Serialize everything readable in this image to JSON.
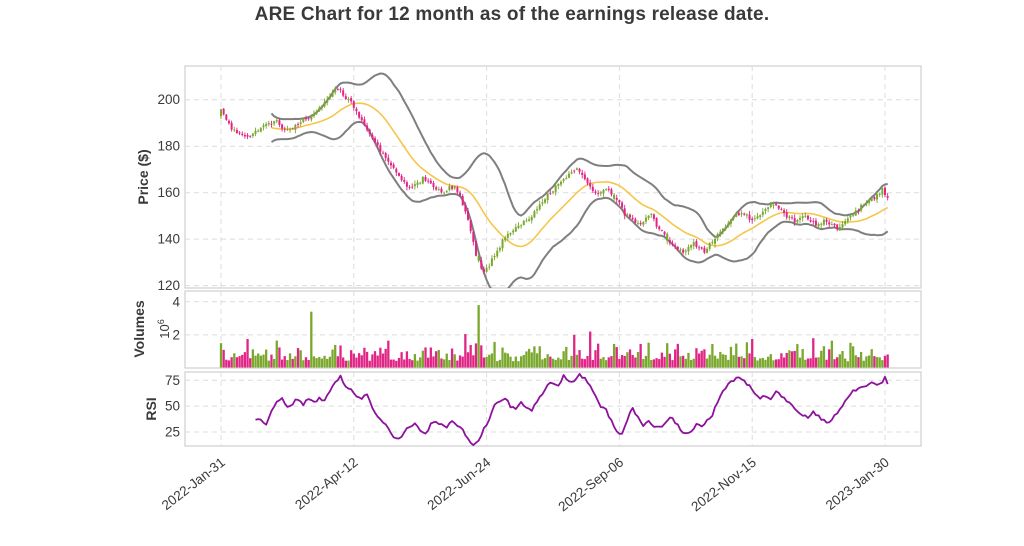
{
  "title": "ARE Chart for 12 month as of the earnings release date.",
  "panels": {
    "price": {
      "ylabel": "Price ($)",
      "yticks": [
        200,
        180,
        160,
        140,
        120
      ]
    },
    "volume": {
      "ylabel": "Volumes",
      "scale_base": "10",
      "scale_exp": "6",
      "yticks": [
        4,
        2
      ]
    },
    "rsi": {
      "ylabel": "RSI",
      "yticks": [
        75,
        50,
        25
      ]
    }
  },
  "xaxis": {
    "tick_labels": [
      "2022-Jan-31",
      "2022-Apr-12",
      "2022-Jun-24",
      "2022-Sep-06",
      "2022-Nov-15",
      "2023-Jan-30"
    ],
    "tick_day_indices": [
      0,
      50,
      100,
      150,
      200,
      250
    ]
  },
  "colors": {
    "candle_up": "#7aa82d",
    "candle_down": "#e02585",
    "bollinger_band": "#7f7f7f",
    "sma_line": "#f6c64a",
    "rsi_line": "#8d119c",
    "grid": "#dcdcdc",
    "panel_border": "#cfcfcf",
    "text": "#3a3a3a",
    "background": "#ffffff"
  },
  "chart_data": {
    "type": "candlestick",
    "title": "ARE Chart for 12 month as of the earnings release date.",
    "num_trading_days": 252,
    "price_ylim": [
      119,
      214.5
    ],
    "volume_ylim": [
      0,
      4.65
    ],
    "rsi_ylim": [
      11.5,
      83
    ],
    "grid": "dashed",
    "overlays": {
      "bollinger_window": 20,
      "bollinger_sigma": 2,
      "sma_window": 20,
      "rsi_window": 14
    },
    "close_anchors": [
      [
        0,
        196
      ],
      [
        1,
        193
      ],
      [
        3,
        189
      ],
      [
        5,
        187
      ],
      [
        7,
        185.5
      ],
      [
        9,
        184.5
      ],
      [
        11,
        185
      ],
      [
        13,
        186.5
      ],
      [
        15,
        188
      ],
      [
        17,
        190
      ],
      [
        19,
        189
      ],
      [
        21,
        191
      ],
      [
        23,
        188
      ],
      [
        25,
        186.5
      ],
      [
        27,
        187.5
      ],
      [
        29,
        189.5
      ],
      [
        31,
        191
      ],
      [
        33,
        192
      ],
      [
        35,
        193.5
      ],
      [
        37,
        196
      ],
      [
        39,
        199
      ],
      [
        41,
        202
      ],
      [
        43,
        204
      ],
      [
        45,
        203.5
      ],
      [
        47,
        201
      ],
      [
        49,
        198.5
      ],
      [
        52,
        193
      ],
      [
        54,
        189
      ],
      [
        56,
        186
      ],
      [
        58,
        182
      ],
      [
        60,
        178
      ],
      [
        62,
        175
      ],
      [
        64,
        172
      ],
      [
        66,
        168
      ],
      [
        68,
        166
      ],
      [
        70,
        163
      ],
      [
        72,
        162
      ],
      [
        74,
        164
      ],
      [
        76,
        166
      ],
      [
        78,
        164
      ],
      [
        80,
        163
      ],
      [
        82,
        161
      ],
      [
        84,
        160
      ],
      [
        86,
        162
      ],
      [
        88,
        163
      ],
      [
        90,
        158
      ],
      [
        92,
        152
      ],
      [
        94,
        144
      ],
      [
        96,
        133
      ],
      [
        98,
        127
      ],
      [
        99,
        126
      ],
      [
        100,
        127.5
      ],
      [
        101,
        129
      ],
      [
        103,
        133
      ],
      [
        105,
        137
      ],
      [
        107,
        141
      ],
      [
        109,
        143.5
      ],
      [
        111,
        145
      ],
      [
        113,
        146.5
      ],
      [
        115,
        148
      ],
      [
        117,
        150
      ],
      [
        119,
        153
      ],
      [
        121,
        156
      ],
      [
        123,
        159
      ],
      [
        125,
        161
      ],
      [
        127,
        164
      ],
      [
        129,
        166
      ],
      [
        131,
        168
      ],
      [
        133,
        169.5
      ],
      [
        134,
        170
      ],
      [
        136,
        167
      ],
      [
        138,
        164
      ],
      [
        140,
        161
      ],
      [
        142,
        159
      ],
      [
        144,
        161
      ],
      [
        146,
        162
      ],
      [
        148,
        158
      ],
      [
        150,
        155
      ],
      [
        152,
        151
      ],
      [
        154,
        149
      ],
      [
        156,
        147
      ],
      [
        158,
        146
      ],
      [
        160,
        149
      ],
      [
        162,
        150
      ],
      [
        164,
        146
      ],
      [
        166,
        143
      ],
      [
        168,
        140
      ],
      [
        170,
        138
      ],
      [
        172,
        136
      ],
      [
        174,
        134
      ],
      [
        176,
        136
      ],
      [
        178,
        138
      ],
      [
        180,
        136
      ],
      [
        182,
        135
      ],
      [
        184,
        138
      ],
      [
        186,
        140
      ],
      [
        188,
        143
      ],
      [
        190,
        146
      ],
      [
        192,
        148
      ],
      [
        194,
        150
      ],
      [
        196,
        151
      ],
      [
        198,
        150
      ],
      [
        200,
        148
      ],
      [
        202,
        150
      ],
      [
        204,
        152
      ],
      [
        206,
        154
      ],
      [
        208,
        155
      ],
      [
        210,
        153
      ],
      [
        212,
        151
      ],
      [
        214,
        149
      ],
      [
        216,
        148
      ],
      [
        218,
        149
      ],
      [
        220,
        150
      ],
      [
        222,
        148
      ],
      [
        224,
        146
      ],
      [
        226,
        147
      ],
      [
        228,
        148
      ],
      [
        230,
        146
      ],
      [
        232,
        145
      ],
      [
        234,
        147
      ],
      [
        236,
        149
      ],
      [
        238,
        151
      ],
      [
        240,
        153
      ],
      [
        242,
        155
      ],
      [
        244,
        157
      ],
      [
        246,
        158
      ],
      [
        248,
        160
      ],
      [
        249,
        162
      ],
      [
        250,
        159
      ],
      [
        251,
        157
      ]
    ],
    "rsi_anchors": [
      [
        13,
        36
      ],
      [
        15,
        38
      ],
      [
        17,
        33
      ],
      [
        19,
        45
      ],
      [
        21,
        54
      ],
      [
        23,
        57
      ],
      [
        25,
        50
      ],
      [
        27,
        53
      ],
      [
        29,
        57
      ],
      [
        31,
        52
      ],
      [
        33,
        57
      ],
      [
        35,
        53
      ],
      [
        37,
        58
      ],
      [
        39,
        55
      ],
      [
        41,
        65
      ],
      [
        43,
        72
      ],
      [
        45,
        78
      ],
      [
        47,
        70
      ],
      [
        49,
        66
      ],
      [
        51,
        60
      ],
      [
        53,
        56
      ],
      [
        55,
        62
      ],
      [
        57,
        48
      ],
      [
        59,
        40
      ],
      [
        61,
        33
      ],
      [
        63,
        30
      ],
      [
        65,
        20
      ],
      [
        67,
        18
      ],
      [
        69,
        25
      ],
      [
        71,
        31
      ],
      [
        73,
        33
      ],
      [
        75,
        26
      ],
      [
        77,
        24
      ],
      [
        79,
        32
      ],
      [
        81,
        35
      ],
      [
        83,
        33
      ],
      [
        85,
        30
      ],
      [
        87,
        35
      ],
      [
        89,
        31
      ],
      [
        91,
        28
      ],
      [
        93,
        18
      ],
      [
        95,
        13
      ],
      [
        97,
        16
      ],
      [
        99,
        28
      ],
      [
        101,
        38
      ],
      [
        103,
        50
      ],
      [
        105,
        55
      ],
      [
        107,
        58
      ],
      [
        109,
        50
      ],
      [
        111,
        46
      ],
      [
        113,
        53
      ],
      [
        115,
        48
      ],
      [
        117,
        45
      ],
      [
        119,
        55
      ],
      [
        121,
        62
      ],
      [
        123,
        70
      ],
      [
        125,
        73
      ],
      [
        127,
        69
      ],
      [
        129,
        79
      ],
      [
        131,
        75
      ],
      [
        133,
        74
      ],
      [
        135,
        80
      ],
      [
        137,
        76
      ],
      [
        139,
        70
      ],
      [
        141,
        60
      ],
      [
        143,
        50
      ],
      [
        145,
        47
      ],
      [
        147,
        35
      ],
      [
        149,
        25
      ],
      [
        151,
        22
      ],
      [
        153,
        38
      ],
      [
        155,
        47
      ],
      [
        157,
        40
      ],
      [
        159,
        32
      ],
      [
        161,
        36
      ],
      [
        163,
        30
      ],
      [
        165,
        29
      ],
      [
        167,
        33
      ],
      [
        169,
        40
      ],
      [
        171,
        35
      ],
      [
        173,
        28
      ],
      [
        175,
        23
      ],
      [
        177,
        25
      ],
      [
        179,
        32
      ],
      [
        181,
        30
      ],
      [
        183,
        36
      ],
      [
        185,
        42
      ],
      [
        187,
        55
      ],
      [
        189,
        65
      ],
      [
        191,
        72
      ],
      [
        193,
        75
      ],
      [
        195,
        78
      ],
      [
        197,
        74
      ],
      [
        199,
        70
      ],
      [
        201,
        62
      ],
      [
        203,
        57
      ],
      [
        205,
        60
      ],
      [
        207,
        57
      ],
      [
        209,
        64
      ],
      [
        211,
        60
      ],
      [
        213,
        55
      ],
      [
        215,
        50
      ],
      [
        217,
        45
      ],
      [
        219,
        42
      ],
      [
        221,
        40
      ],
      [
        223,
        45
      ],
      [
        225,
        40
      ],
      [
        227,
        36
      ],
      [
        229,
        34
      ],
      [
        231,
        40
      ],
      [
        233,
        46
      ],
      [
        235,
        55
      ],
      [
        237,
        62
      ],
      [
        239,
        66
      ],
      [
        241,
        68
      ],
      [
        243,
        70
      ],
      [
        245,
        72
      ],
      [
        247,
        70
      ],
      [
        249,
        74
      ],
      [
        250,
        77
      ],
      [
        251,
        70
      ]
    ],
    "volume_base_range": [
      0.4,
      1.6
    ],
    "volume_spikes": [
      [
        0,
        1.5,
        "u"
      ],
      [
        10,
        1.75,
        "d"
      ],
      [
        34,
        3.4,
        "u"
      ],
      [
        63,
        1.65,
        "d"
      ],
      [
        92,
        2.05,
        "d"
      ],
      [
        97,
        3.8,
        "u"
      ],
      [
        133,
        2.0,
        "d"
      ],
      [
        139,
        2.2,
        "d"
      ],
      [
        148,
        1.45,
        "u"
      ],
      [
        158,
        1.45,
        "d"
      ],
      [
        168,
        1.5,
        "u"
      ],
      [
        185,
        1.45,
        "u"
      ],
      [
        200,
        1.75,
        "d"
      ],
      [
        223,
        1.8,
        "d"
      ],
      [
        230,
        1.65,
        "u"
      ]
    ]
  }
}
